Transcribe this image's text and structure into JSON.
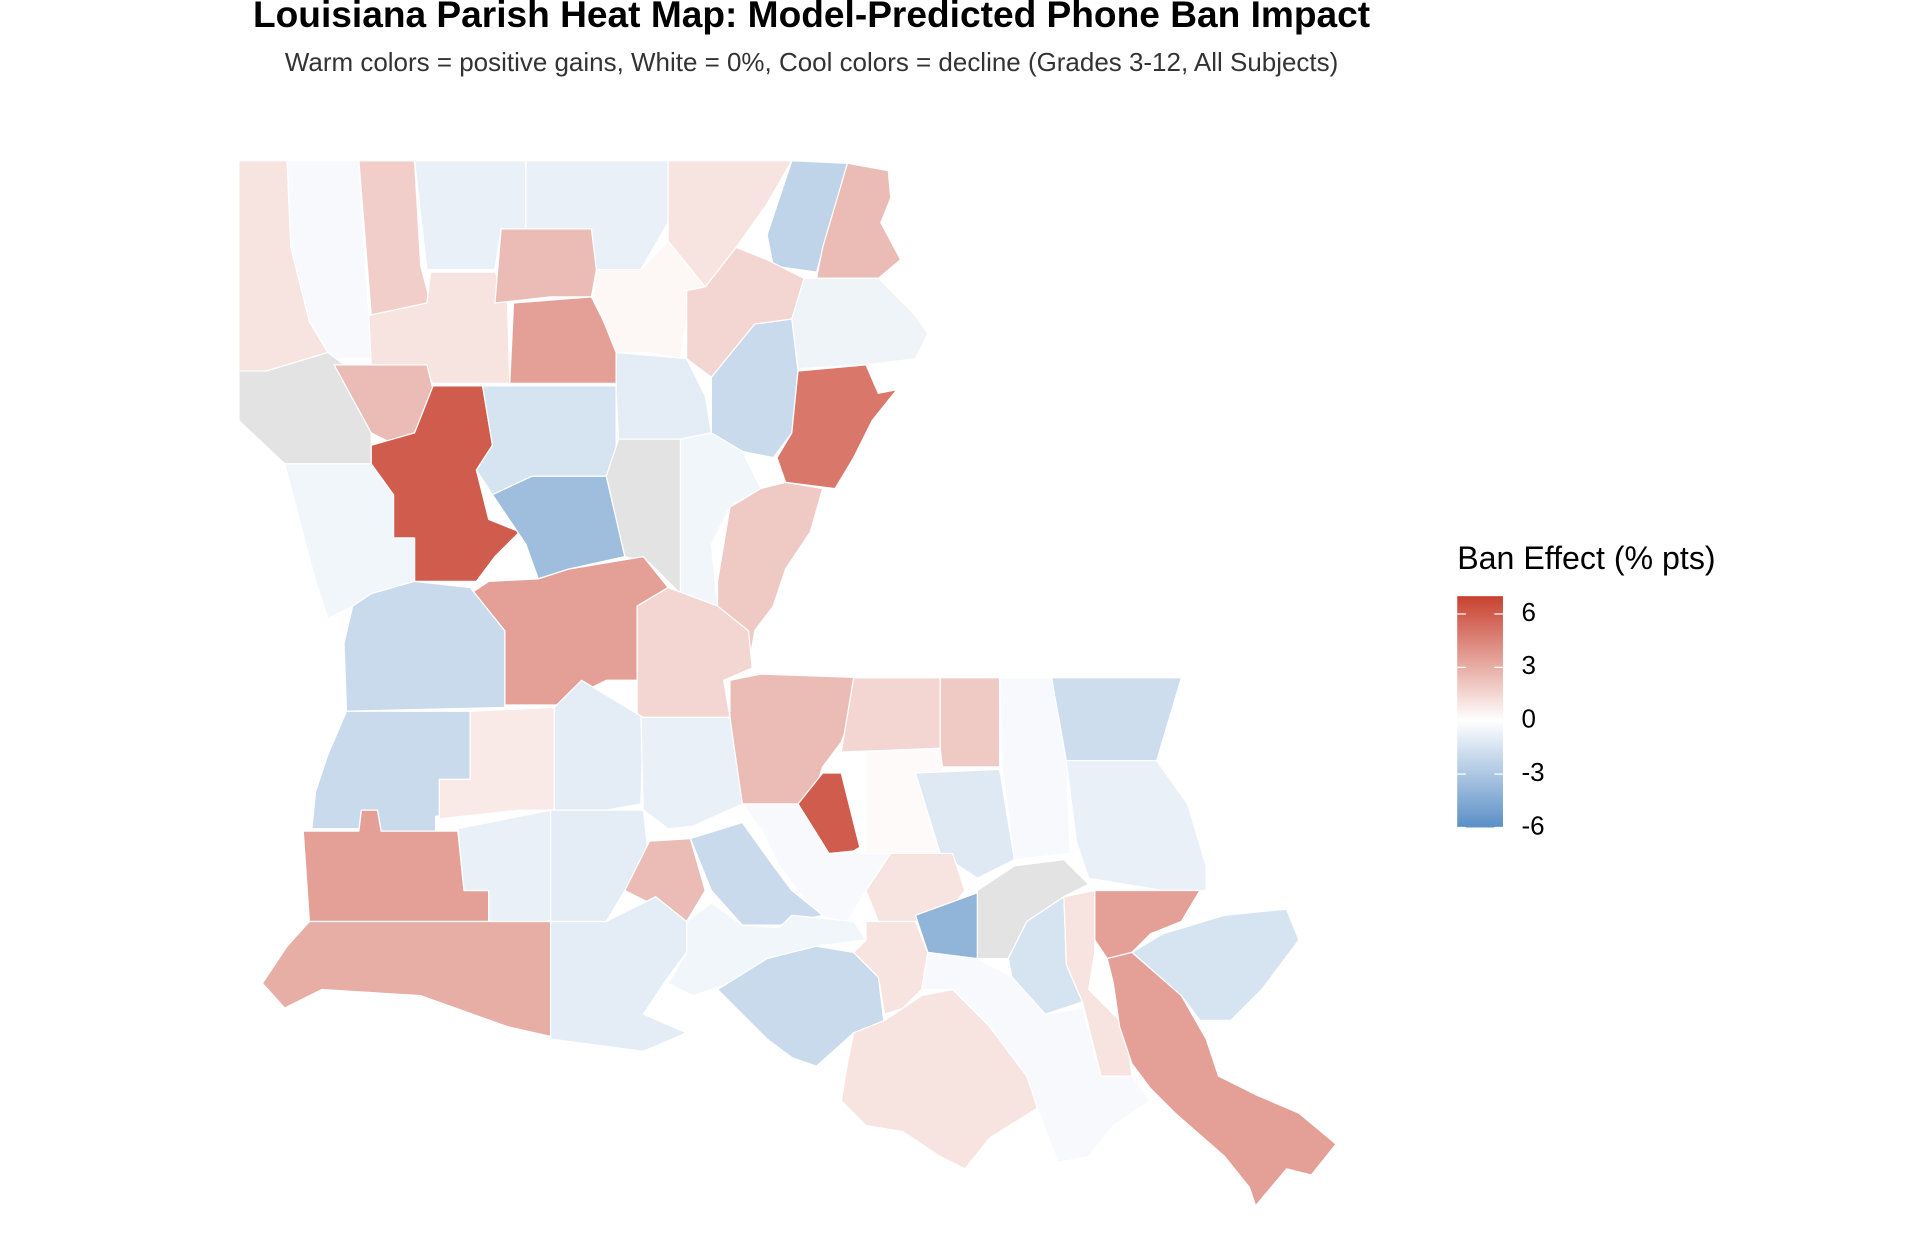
{
  "chart_data": {
    "type": "choropleth",
    "title": "Louisiana Parish Heat Map: Model-Predicted Phone Ban Impact",
    "subtitle": "Warm colors = positive gains, White = 0%, Cool colors = decline (Grades 3-12, All Subjects)",
    "legend_title": "Ban Effect (% pts)",
    "legend_ticks": [
      6,
      3,
      0,
      -3,
      -6
    ],
    "limits": [
      -6,
      7
    ],
    "colors": {
      "low": "#5a8fc6",
      "mid": "#ffffff",
      "high": "#c8412f"
    },
    "na_color": "#e3e3e3",
    "values": [
      1,
      -0.3,
      1.8,
      -0.8,
      -0.8,
      1,
      -2.3,
      2.5,
      1,
      2.5,
      3.5,
      0.3,
      1.5,
      -0.6,
      null,
      2.5,
      6,
      -1.5,
      -1,
      -2,
      5,
      null,
      -0.5,
      2,
      -0.5,
      -3.5,
      3.5,
      -2,
      1.5,
      2.5,
      1.5,
      2,
      -0.3,
      -1.8,
      -0.8,
      -2,
      0.8,
      -1,
      -0.8,
      0.2,
      6,
      -1.2,
      -0.3,
      3.5,
      -0.8,
      -1,
      2.5,
      -2,
      1,
      -4,
      null,
      -1.5,
      1,
      3.5,
      -1.5,
      3.5,
      3,
      -1,
      -0.5,
      -2,
      1,
      1,
      -0.3
    ]
  }
}
